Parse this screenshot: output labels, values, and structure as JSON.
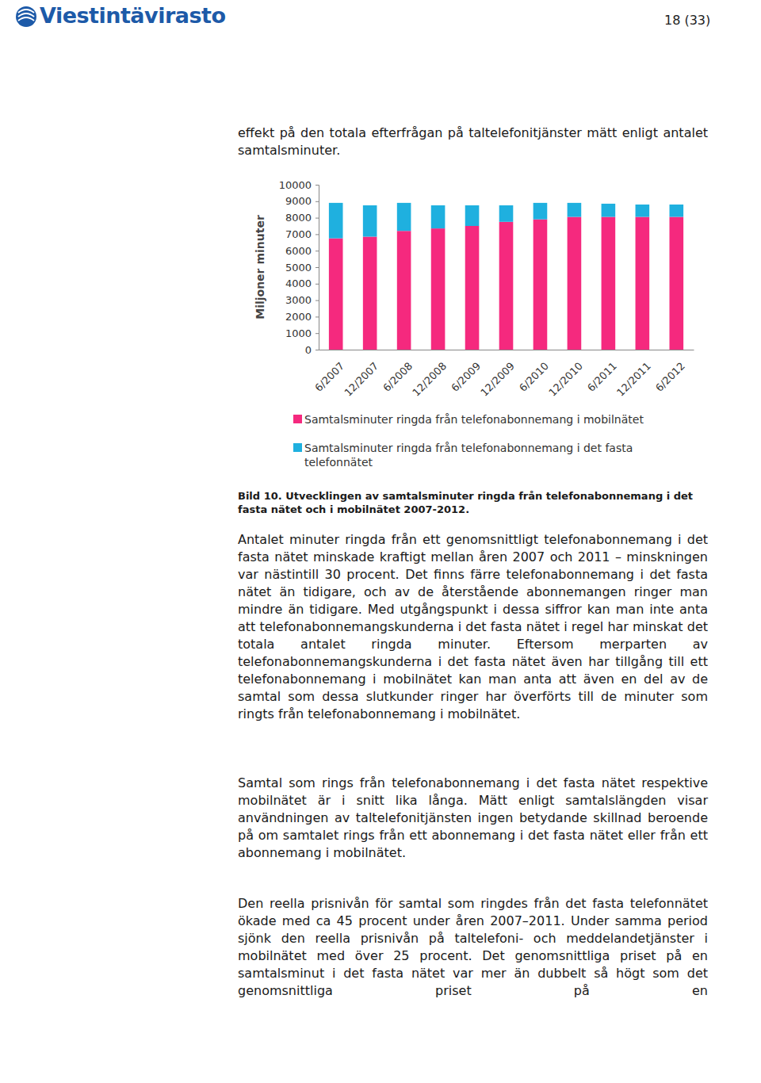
{
  "header": {
    "logo": "Viestintävirasto",
    "page": "18 (33)"
  },
  "intro": "effekt på den totala efterfrågan på taltelefonitjänster mätt enligt antalet samtalsminuter.",
  "chart_data": {
    "type": "bar",
    "stacked": true,
    "y_label": "Miljoner minuter",
    "categories": [
      "6/2007",
      "12/2007",
      "6/2008",
      "12/2008",
      "6/2009",
      "12/2009",
      "6/2010",
      "12/2010",
      "6/2011",
      "12/2011",
      "6/2012"
    ],
    "series": [
      {
        "name": "Samtalsminuter ringda från telefonabonnemang i mobilnätet",
        "color": "#f5297e",
        "values": [
          6750,
          6850,
          7200,
          7350,
          7500,
          7750,
          7900,
          8050,
          8050,
          8050,
          8050
        ]
      },
      {
        "name": "Samtalsminuter ringda från telefonabonnemang i det fasta telefonnätet",
        "color": "#1fb0df",
        "values": [
          2150,
          1900,
          1700,
          1400,
          1250,
          1000,
          1000,
          850,
          800,
          750,
          750
        ]
      }
    ],
    "ylim": [
      0,
      10000
    ],
    "yticks": [
      0,
      1000,
      2000,
      3000,
      4000,
      5000,
      6000,
      7000,
      8000,
      9000,
      10000
    ],
    "grid": false,
    "legend": "bottom"
  },
  "caption": "Bild 10. Utvecklingen av samtalsminuter ringda från telefonabonnemang i det fasta nätet och i mobilnätet 2007-2012.",
  "paragraphs": [
    "Antalet minuter ringda från ett genomsnittligt telefonabonnemang i det fasta nätet minskade kraftigt mellan åren 2007 och 2011 – minskningen var nästintill 30 procent. Det finns färre telefonabonnemang i det fasta nätet än tidigare, och av de återstående abonnemangen ringer man mindre än tidigare. Med utgångspunkt i dessa siffror kan man inte anta att telefonabonnemangskunderna i det fasta nätet i regel har minskat det totala antalet ringda minuter. Eftersom merparten av telefonabonnemangskunderna i det fasta nätet även har tillgång till ett telefonabonnemang i mobilnätet kan man anta att även en del av de samtal som dessa slutkunder ringer har överförts till de minuter som ringts från telefonabonnemang i mobilnätet.",
    "Samtal som rings från telefonabonnemang i det fasta nätet respektive mobilnätet är i snitt lika långa. Mätt enligt samtalslängden visar användningen av taltelefonitjänsten ingen betydande skillnad beroende på om samtalet rings från ett abonnemang i det fasta nätet eller från ett abonnemang i mobilnätet.",
    "Den reella prisnivån för samtal som ringdes från det fasta telefonnätet ökade med ca 45 procent under åren 2007–2011. Under samma period sjönk den reella prisnivån på taltelefoni- och meddelandetjänster i mobilnätet med över 25 procent. Det genomsnittliga priset på en samtalsminut i det fasta nätet var mer än dubbelt så högt som det genomsnittliga priset på en"
  ]
}
